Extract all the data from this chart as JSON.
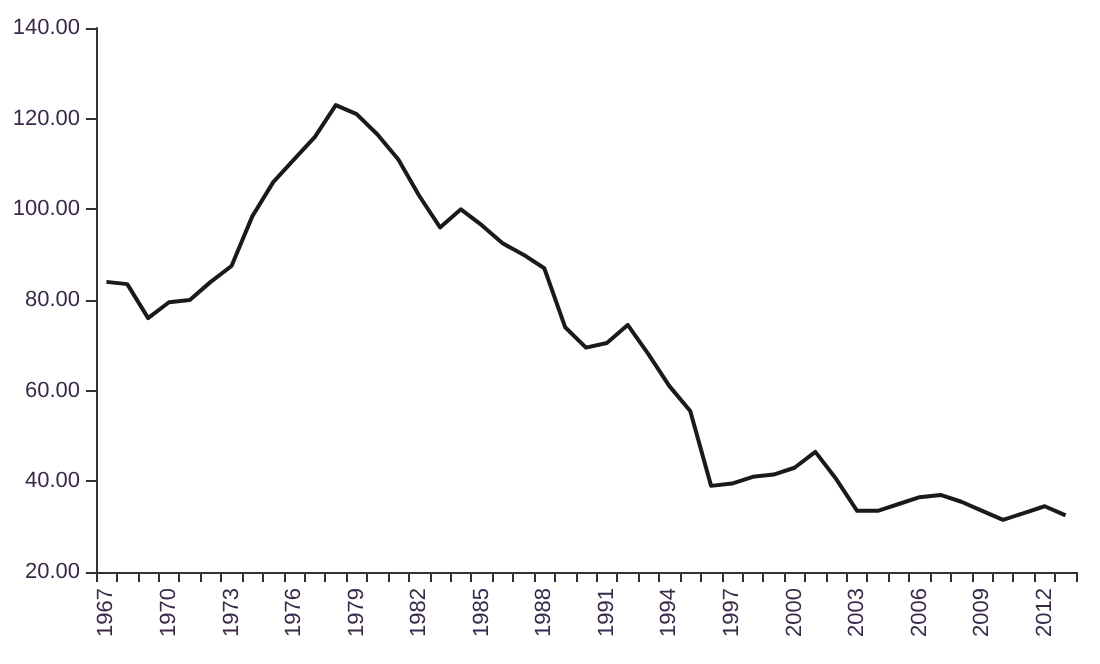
{
  "chart_data": {
    "type": "line",
    "categories": [
      "1967",
      null,
      null,
      "1970",
      null,
      null,
      "1973",
      null,
      null,
      "1976",
      null,
      null,
      "1979",
      null,
      null,
      "1982",
      null,
      null,
      "1985",
      null,
      null,
      "1988",
      null,
      null,
      "1991",
      null,
      null,
      "1994",
      null,
      null,
      "1997",
      null,
      null,
      "2000",
      null,
      null,
      "2003",
      null,
      null,
      "2006",
      null,
      null,
      "2009",
      null,
      null,
      "2012",
      null
    ],
    "series": [
      {
        "color": "#1a1a1a",
        "values": [
          84,
          83.5,
          76,
          79.5,
          80,
          84,
          87.5,
          98.5,
          106,
          111,
          116,
          123,
          121,
          116.5,
          111,
          103,
          96,
          100,
          96.5,
          92.5,
          90,
          87,
          74,
          69.5,
          70.5,
          74.5,
          68,
          61,
          55.5,
          39,
          39.5,
          41,
          41.5,
          43,
          46.5,
          40.5,
          33.5,
          33.5,
          35,
          36.5,
          37,
          35.5,
          33.5,
          31.5,
          33,
          34.5,
          32.5
        ]
      }
    ],
    "ylim": [
      20,
      140
    ],
    "yticks": [
      {
        "value": 20,
        "label": "20.00"
      },
      {
        "value": 40,
        "label": "40.00"
      },
      {
        "value": 60,
        "label": "60.00"
      },
      {
        "value": 80,
        "label": "80.00"
      },
      {
        "value": 100,
        "label": "100.00"
      },
      {
        "value": 120,
        "label": "120.00"
      },
      {
        "value": 140,
        "label": "140.00"
      }
    ],
    "marker": "none",
    "line_style": "solid"
  }
}
